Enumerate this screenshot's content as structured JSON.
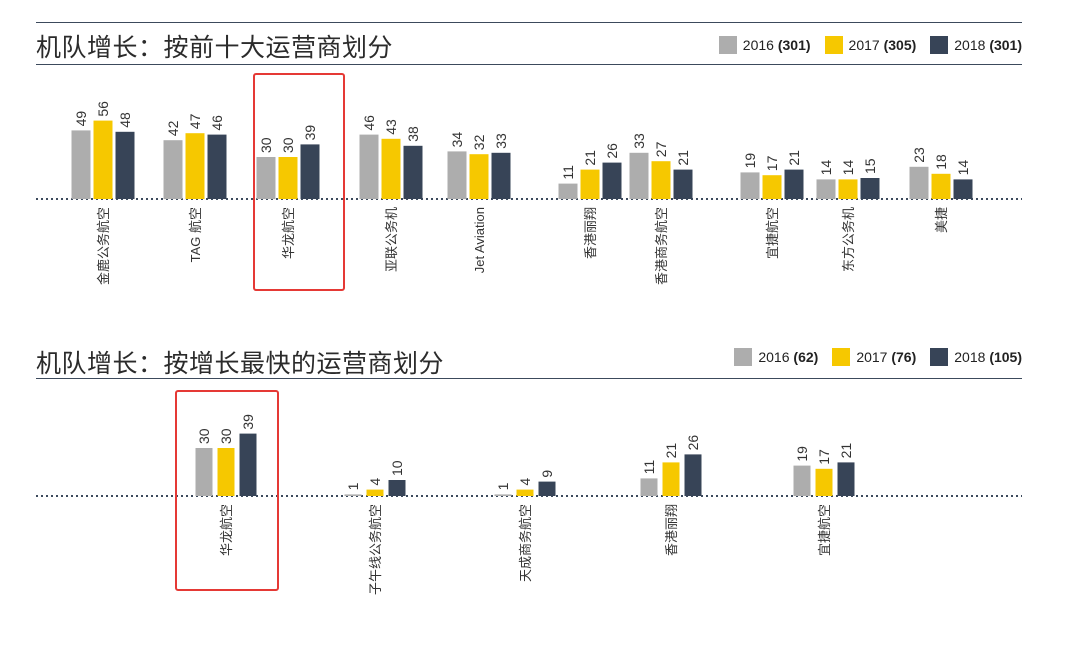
{
  "colors": {
    "2016": "#adadad",
    "2017": "#f6c800",
    "2018": "#374457",
    "highlight": "#e53935"
  },
  "chart_data": [
    {
      "type": "bar",
      "title": "机队增长：按前十大运营商划分",
      "legend": [
        {
          "year": "2016",
          "count": "(301)"
        },
        {
          "year": "2017",
          "count": "(305)"
        },
        {
          "year": "2018",
          "count": "(301)"
        }
      ],
      "categories": [
        "金鹿公务航空",
        "TAG 航空",
        "华龙航空",
        "亚联公务机",
        "Jet Aviation",
        "香港丽翔",
        "香港商务航空",
        "宜捷航空",
        "东方公务机",
        "美捷"
      ],
      "series": [
        {
          "name": "2016",
          "values": [
            49,
            42,
            30,
            46,
            34,
            11,
            33,
            19,
            14,
            23
          ]
        },
        {
          "name": "2017",
          "values": [
            56,
            47,
            30,
            43,
            32,
            21,
            27,
            17,
            14,
            18
          ]
        },
        {
          "name": "2018",
          "values": [
            48,
            46,
            39,
            38,
            33,
            26,
            21,
            21,
            15,
            14
          ]
        }
      ],
      "highlight_category": "华龙航空"
    },
    {
      "type": "bar",
      "title": "机队增长：按增长最快的运营商划分",
      "legend": [
        {
          "year": "2016",
          "count": "(62)"
        },
        {
          "year": "2017",
          "count": "(76)"
        },
        {
          "year": "2018",
          "count": "(105)"
        }
      ],
      "categories": [
        "华龙航空",
        "子午线公务航空",
        "天成商务航空",
        "香港丽翔",
        "宜捷航空"
      ],
      "series": [
        {
          "name": "2016",
          "values": [
            30,
            1,
            1,
            11,
            19
          ]
        },
        {
          "name": "2017",
          "values": [
            30,
            4,
            4,
            21,
            17
          ]
        },
        {
          "name": "2018",
          "values": [
            39,
            10,
            9,
            26,
            21
          ]
        }
      ],
      "highlight_category": "华龙航空"
    }
  ]
}
